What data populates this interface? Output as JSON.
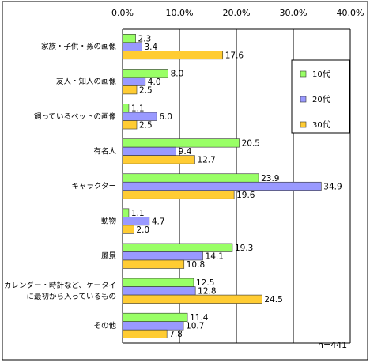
{
  "chart_data": {
    "type": "bar",
    "orientation": "horizontal",
    "categories": [
      "家族・子供・孫の画像",
      "友人・知人の画像",
      "飼っているペットの画像",
      "有名人",
      "キャラクター",
      "動物",
      "風景",
      "カレンダー・時計など、ケータイに最初から入っているもの",
      "その他"
    ],
    "category_lines": [
      [
        "家族・子供・孫の画像"
      ],
      [
        "友人・知人の画像"
      ],
      [
        "飼っているペットの画像"
      ],
      [
        "有名人"
      ],
      [
        "キャラクター"
      ],
      [
        "動物"
      ],
      [
        "風景"
      ],
      [
        "カレンダー・時計など、ケータイ",
        "に最初から入っているもの"
      ],
      [
        "その他"
      ]
    ],
    "series": [
      {
        "name": "10代",
        "color": "#99ff66",
        "values": [
          2.3,
          8.0,
          1.1,
          20.5,
          23.9,
          1.1,
          19.3,
          12.5,
          11.4
        ]
      },
      {
        "name": "20代",
        "color": "#9999ff",
        "values": [
          3.4,
          4.0,
          6.0,
          9.4,
          34.9,
          4.7,
          14.1,
          12.8,
          10.7
        ]
      },
      {
        "name": "30代",
        "color": "#ffcc33",
        "values": [
          17.6,
          2.5,
          2.5,
          12.7,
          19.6,
          2.0,
          10.8,
          24.5,
          7.8
        ]
      }
    ],
    "xlim": [
      0,
      40
    ],
    "ticks": [
      "0.0%",
      "10.0%",
      "20.0%",
      "30.0%",
      "40.0%"
    ],
    "tick_values": [
      0,
      10,
      20,
      30,
      40
    ],
    "grid": true,
    "legend_position": "right",
    "note": "n=441"
  }
}
